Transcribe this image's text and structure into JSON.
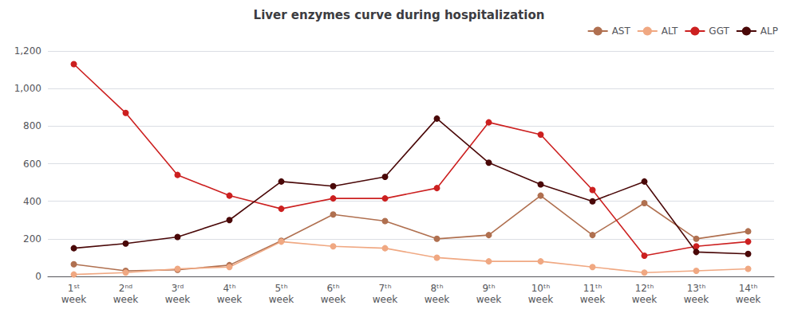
{
  "chart_data": {
    "type": "line",
    "title": "Liver enzymes curve during hospitalization",
    "categories": [
      "1ˢᵗ\nweek",
      "2ⁿᵈ\nweek",
      "3ʳᵈ\nweek",
      "4ᵗʰ\nweek",
      "5ᵗʰ\nweek",
      "6ᵗʰ\nweek",
      "7ᵗʰ\nweek",
      "8ᵗʰ\nweek",
      "9ᵗʰ\nweek",
      "10ᵗʰ\nweek",
      "11ᵗʰ\nweek",
      "12ᵗʰ\nweek",
      "13ᵗʰ\nweek",
      "14ᵗʰ\nweek"
    ],
    "series": [
      {
        "name": "AST",
        "color": "#b07050",
        "values": [
          65,
          30,
          35,
          60,
          190,
          330,
          295,
          200,
          220,
          430,
          220,
          390,
          200,
          240
        ]
      },
      {
        "name": "ALT",
        "color": "#f0a882",
        "values": [
          10,
          20,
          40,
          50,
          185,
          160,
          150,
          100,
          80,
          80,
          50,
          20,
          30,
          40
        ]
      },
      {
        "name": "GGT",
        "color": "#cc2020",
        "values": [
          1130,
          870,
          540,
          430,
          360,
          415,
          415,
          470,
          820,
          755,
          460,
          110,
          160,
          185
        ]
      },
      {
        "name": "ALP",
        "color": "#4a0808",
        "values": [
          150,
          175,
          210,
          300,
          505,
          480,
          530,
          840,
          605,
          490,
          400,
          505,
          130,
          120
        ]
      }
    ],
    "ylim": [
      0,
      1200
    ],
    "yticks": [
      0,
      200,
      400,
      600,
      800,
      1000,
      1200
    ],
    "grid": true,
    "legend": "upper right",
    "marker": "circle"
  }
}
